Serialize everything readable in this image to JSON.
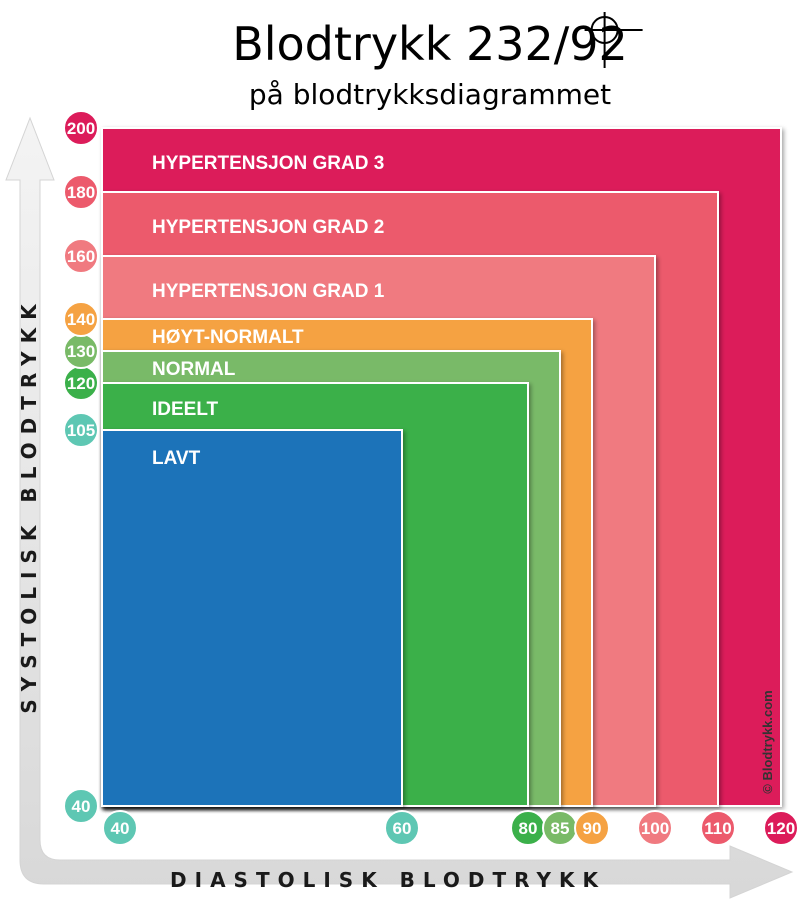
{
  "title": "Blodtrykk 232/92",
  "subtitle": "på blodtrykksdiagrammet",
  "copyright": "© Blodtrykk.com",
  "chart_data": {
    "type": "area",
    "title": "Blodtrykk 232/92",
    "subtitle": "på blodtrykksdiagrammet",
    "xlabel": "DIASTOLISK BLODTRYKK",
    "ylabel": "SYSTOLISK BLODTRYKK",
    "x_ticks": [
      40,
      60,
      80,
      85,
      90,
      100,
      110,
      120
    ],
    "y_ticks": [
      40,
      105,
      120,
      130,
      140,
      160,
      180,
      200
    ],
    "zones": [
      {
        "label": "HYPERTENSJON GRAD 3",
        "diastolic_max": 120,
        "systolic_max": 200,
        "color": "#dc1c5a"
      },
      {
        "label": "HYPERTENSJON GRAD 2",
        "diastolic_max": 110,
        "systolic_max": 180,
        "color": "#ec5a6c"
      },
      {
        "label": "HYPERTENSJON GRAD 1",
        "diastolic_max": 100,
        "systolic_max": 160,
        "color": "#f07a80"
      },
      {
        "label": "HØYT-NORMALT",
        "diastolic_max": 90,
        "systolic_max": 140,
        "color": "#f5a243"
      },
      {
        "label": "NORMAL",
        "diastolic_max": 85,
        "systolic_max": 130,
        "color": "#79ba67"
      },
      {
        "label": "IDEELT",
        "diastolic_max": 80,
        "systolic_max": 120,
        "color": "#3bb04a"
      },
      {
        "label": "LAVT",
        "diastolic_max": 60,
        "systolic_max": 105,
        "color": "#1b73b9"
      }
    ],
    "x_tick_colors": {
      "40": "#5ec7b3",
      "60": "#5ec7b3",
      "80": "#3bb04a",
      "85": "#79ba67",
      "90": "#f5a243",
      "100": "#f07a80",
      "110": "#ec5a6c",
      "120": "#dc1c5a"
    },
    "y_tick_colors": {
      "40": "#5ec7b3",
      "105": "#5ec7b3",
      "120": "#3bb04a",
      "130": "#79ba67",
      "140": "#f5a243",
      "160": "#f07a80",
      "180": "#ec5a6c",
      "200": "#dc1c5a"
    },
    "marker": {
      "systolic": 232,
      "diastolic": 92
    }
  }
}
